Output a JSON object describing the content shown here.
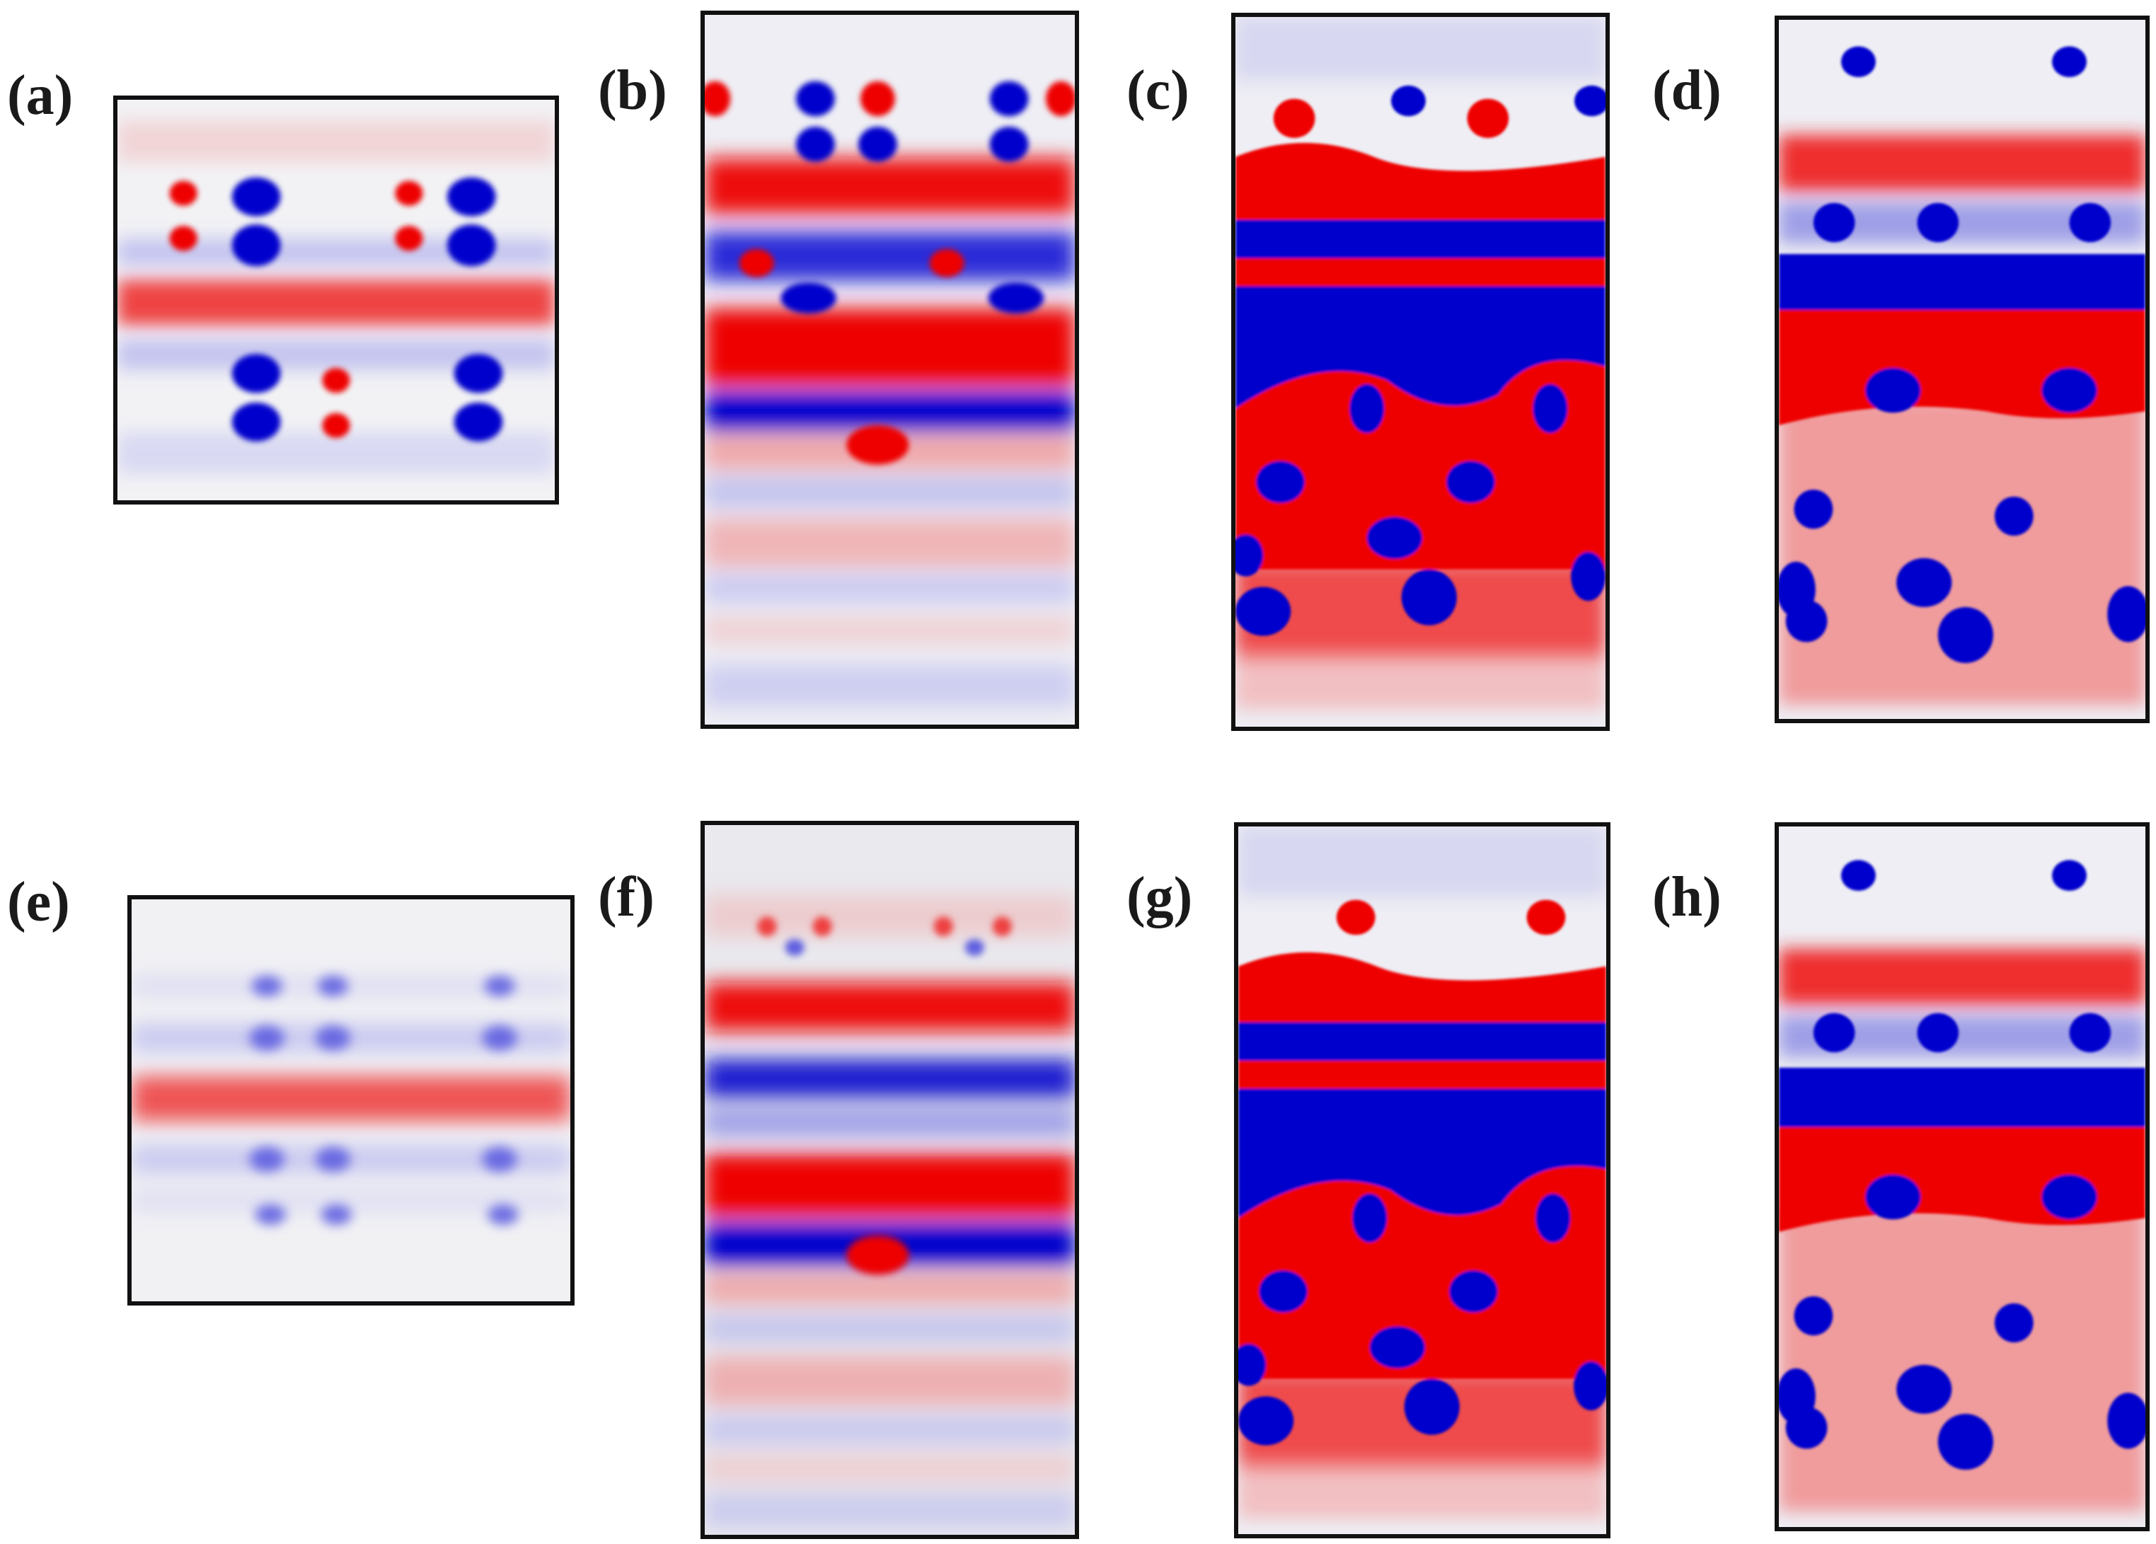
{
  "figure": {
    "panels": [
      {
        "id": "a",
        "label": "(a)"
      },
      {
        "id": "b",
        "label": "(b)"
      },
      {
        "id": "c",
        "label": "(c)"
      },
      {
        "id": "d",
        "label": "(d)"
      },
      {
        "id": "e",
        "label": "(e)"
      },
      {
        "id": "f",
        "label": "(f)"
      },
      {
        "id": "g",
        "label": "(g)"
      },
      {
        "id": "h",
        "label": "(h)"
      }
    ],
    "colors": {
      "positive": "#ee0000",
      "negative": "#0000cc",
      "background": "#f0f0f3",
      "frame": "#111111"
    }
  }
}
